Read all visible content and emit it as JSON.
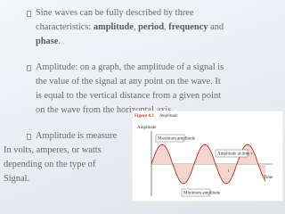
{
  "slide": {
    "bullets": [
      {
        "lines": [
          [
            {
              "text": "Sine waves can be fully described by three",
              "bold": false
            }
          ],
          [
            {
              "text": "characteristics: ",
              "bold": false
            },
            {
              "text": "amplitude",
              "bold": true
            },
            {
              "text": ", ",
              "bold": false
            },
            {
              "text": "period",
              "bold": true
            },
            {
              "text": ", ",
              "bold": false
            },
            {
              "text": "frequency",
              "bold": true
            },
            {
              "text": " and",
              "bold": false
            }
          ],
          [
            {
              "text": "phase",
              "bold": true
            },
            {
              "text": ".",
              "bold": false
            }
          ]
        ]
      },
      {
        "lines": [
          [
            {
              "text": "Amplitude: on a graph, the amplitude  of a signal is",
              "bold": false
            }
          ],
          [
            {
              "text": "the value of the signal at any point on the wave.  It",
              "bold": false
            }
          ],
          [
            {
              "text": "is equal to the vertical distance from a given point",
              "bold": false
            }
          ],
          [
            {
              "text": "on the wave from the horizontal axis.",
              "bold": false
            }
          ]
        ]
      },
      {
        "lines": [
          [
            {
              "text": "Amplitude is measure",
              "bold": false
            }
          ]
        ]
      }
    ],
    "continuation": [
      "In volts, amperes, or watts",
      "depending on the type of",
      "Signal."
    ],
    "figure": {
      "number": "Figure 4.3",
      "title": "Amplitude",
      "y_axis": "Amplitude",
      "x_axis": "Time",
      "max_label": "Maximum amplitude",
      "time_label": "Amplitude at time t",
      "min_label": "Minimum amplitude",
      "time_marker": "t"
    }
  }
}
